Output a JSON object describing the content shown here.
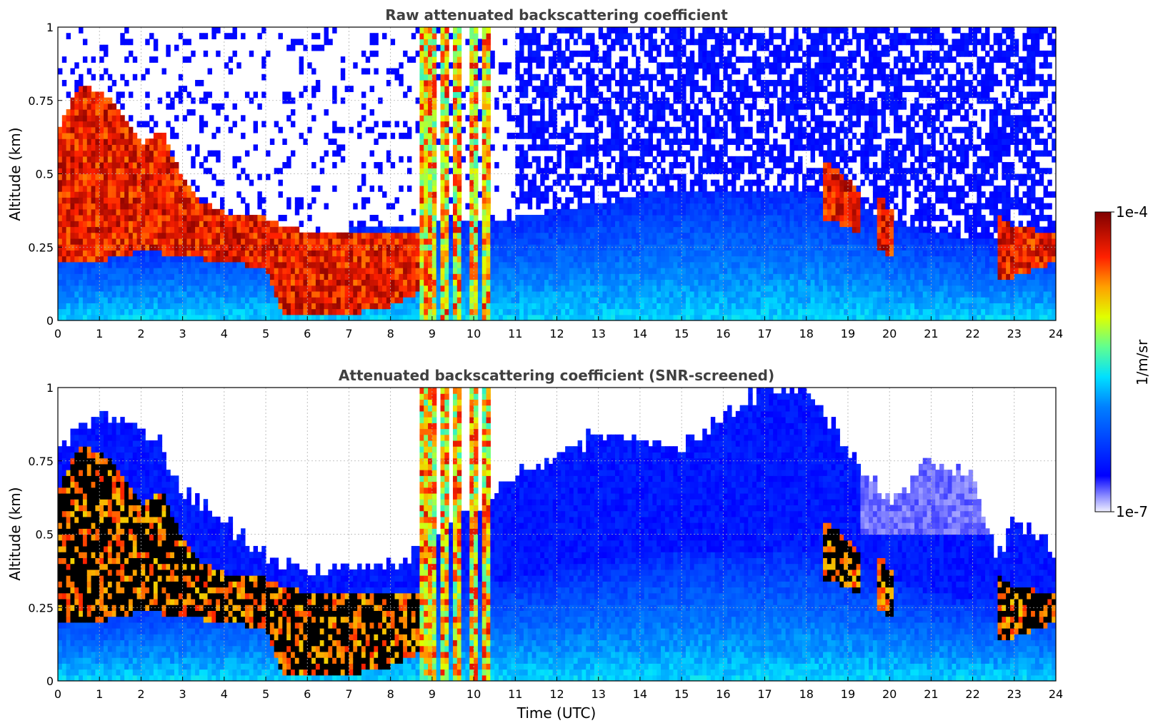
{
  "chart_data": [
    {
      "type": "heatmap",
      "title": "Raw attenuated backscattering coefficient",
      "xlabel": "",
      "ylabel": "Altitude (km)",
      "xlim": [
        0,
        24
      ],
      "ylim": [
        0,
        1
      ],
      "x_ticks": [
        "0",
        "1",
        "2",
        "3",
        "4",
        "5",
        "6",
        "7",
        "8",
        "9",
        "10",
        "11",
        "12",
        "13",
        "14",
        "15",
        "16",
        "17",
        "18",
        "19",
        "20",
        "21",
        "22",
        "23",
        "24"
      ],
      "y_ticks": [
        "0",
        "0.25",
        "0.5",
        "0.75",
        "1"
      ],
      "grid": true,
      "colormap": "jet",
      "color_scale": "log",
      "clim": [
        "1e-7",
        "1e-4"
      ],
      "layers": {
        "cloud_top_km": [
          [
            0,
            0.65
          ],
          [
            0.5,
            0.8
          ],
          [
            1,
            0.78
          ],
          [
            1.5,
            0.72
          ],
          [
            2,
            0.6
          ],
          [
            2.5,
            0.65
          ],
          [
            3,
            0.48
          ],
          [
            3.5,
            0.4
          ],
          [
            4,
            0.37
          ],
          [
            4.5,
            0.36
          ],
          [
            5,
            0.35
          ],
          [
            5.5,
            0.32
          ],
          [
            6,
            0.3
          ],
          [
            7,
            0.3
          ],
          [
            8,
            0.3
          ],
          [
            8.7,
            0.3
          ],
          [
            18.5,
            0.55
          ],
          [
            19.2,
            0.45
          ],
          [
            19.8,
            0.42
          ],
          [
            20,
            0.38
          ],
          [
            22.6,
            0.36
          ],
          [
            23,
            0.32
          ],
          [
            24,
            0.3
          ]
        ],
        "cloud_base_km": [
          [
            0,
            0.2
          ],
          [
            1,
            0.2
          ],
          [
            2,
            0.24
          ],
          [
            3,
            0.22
          ],
          [
            4,
            0.2
          ],
          [
            5,
            0.18
          ],
          [
            5.4,
            0.02
          ],
          [
            6,
            0.02
          ],
          [
            7,
            0.02
          ],
          [
            8,
            0.05
          ],
          [
            8.7,
            0.1
          ],
          [
            18.5,
            0.35
          ],
          [
            19.2,
            0.3
          ],
          [
            20,
            0.22
          ],
          [
            22.6,
            0.15
          ],
          [
            23,
            0.15
          ],
          [
            24,
            0.2
          ]
        ],
        "aerosol_top_km": [
          [
            0,
            0.25
          ],
          [
            6,
            0.3
          ],
          [
            11,
            0.35
          ],
          [
            15,
            0.45
          ],
          [
            18,
            0.45
          ],
          [
            21,
            0.3
          ],
          [
            24,
            0.25
          ]
        ],
        "dense_columns_utc": [
          8.8,
          9.0,
          9.3,
          9.6,
          10.0,
          10.3
        ]
      }
    },
    {
      "type": "heatmap",
      "title": "Attenuated backscattering coefficient (SNR-screened)",
      "xlabel": "Time (UTC)",
      "ylabel": "Altitude (km)",
      "xlim": [
        0,
        24
      ],
      "ylim": [
        0,
        1
      ],
      "x_ticks": [
        "0",
        "1",
        "2",
        "3",
        "4",
        "5",
        "6",
        "7",
        "8",
        "9",
        "10",
        "11",
        "12",
        "13",
        "14",
        "15",
        "16",
        "17",
        "18",
        "19",
        "20",
        "21",
        "22",
        "23",
        "24"
      ],
      "y_ticks": [
        "0",
        "0.25",
        "0.5",
        "0.75",
        "1"
      ],
      "grid": true,
      "colormap": "jet",
      "color_scale": "log",
      "clim": [
        "1e-7",
        "1e-4"
      ],
      "layers": {
        "signal_top_km": [
          [
            0,
            0.78
          ],
          [
            1,
            0.92
          ],
          [
            2,
            0.85
          ],
          [
            2.5,
            0.8
          ],
          [
            3,
            0.65
          ],
          [
            4,
            0.55
          ],
          [
            5,
            0.42
          ],
          [
            6,
            0.38
          ],
          [
            7,
            0.4
          ],
          [
            8,
            0.4
          ],
          [
            8.7,
            0.45
          ],
          [
            11,
            0.7
          ],
          [
            12,
            0.75
          ],
          [
            13,
            0.85
          ],
          [
            15,
            0.8
          ],
          [
            16,
            0.9
          ],
          [
            17,
            1.0
          ],
          [
            18,
            1.0
          ],
          [
            19,
            0.8
          ],
          [
            20,
            0.6
          ],
          [
            21,
            0.75
          ],
          [
            22,
            0.7
          ],
          [
            22.6,
            0.42
          ],
          [
            23,
            0.55
          ],
          [
            24,
            0.45
          ]
        ],
        "dense_columns_utc": [
          8.8,
          9.0,
          9.3,
          9.6,
          10.0,
          10.3
        ]
      }
    }
  ],
  "colorbar": {
    "label": "1/m/sr",
    "max_label": "1e-4",
    "min_label": "1e-7"
  }
}
